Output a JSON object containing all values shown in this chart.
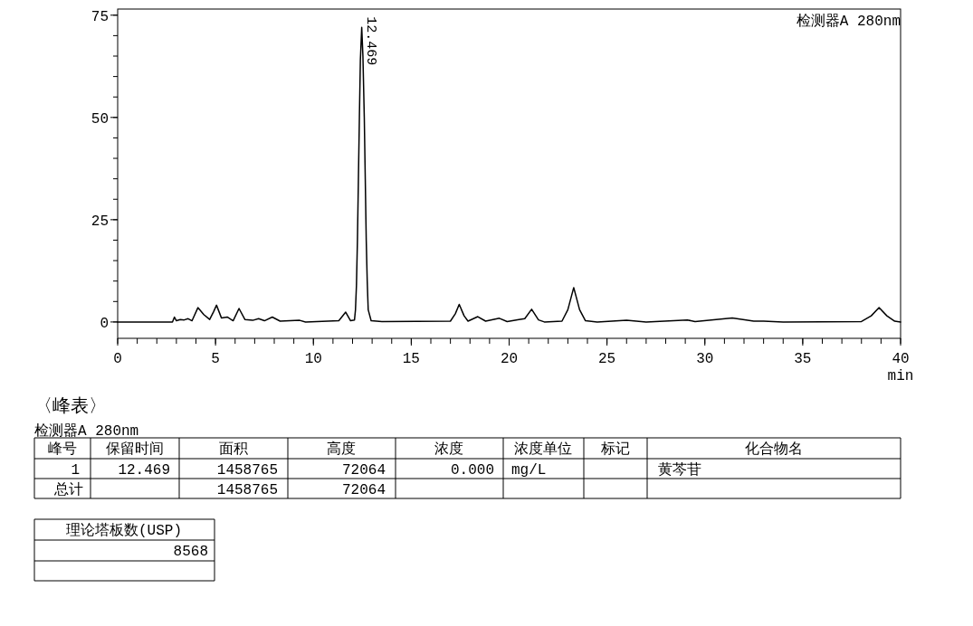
{
  "chart_data": {
    "type": "line",
    "xlabel": "min",
    "x": [
      0,
      2.8,
      2.9,
      3.0,
      3.2,
      3.4,
      3.6,
      3.8,
      4.1,
      4.4,
      4.7,
      4.9,
      5.05,
      5.3,
      5.6,
      5.9,
      6.2,
      6.5,
      6.9,
      7.2,
      7.5,
      7.9,
      8.3,
      9.3,
      9.6,
      11.3,
      11.65,
      11.9,
      12.1,
      12.15,
      12.2,
      12.25,
      12.3,
      12.35,
      12.4,
      12.469,
      12.53,
      12.6,
      12.65,
      12.7,
      12.75,
      12.8,
      12.95,
      13.5,
      17.0,
      17.25,
      17.45,
      17.7,
      17.9,
      18.4,
      18.8,
      19.5,
      19.9,
      20.5,
      20.8,
      21.15,
      21.5,
      21.8,
      22.7,
      23.0,
      23.3,
      23.6,
      23.9,
      24.5,
      26,
      27,
      29.1,
      29.5,
      31.4,
      32.5,
      33,
      34,
      38.0,
      38.5,
      38.9,
      39.3,
      39.7,
      40
    ],
    "series": [
      {
        "color": "#000000",
        "values": [
          0,
          0,
          1.2,
          0.3,
          0.6,
          0.5,
          0.8,
          0.3,
          3.5,
          1.8,
          0.6,
          2.5,
          4.1,
          1.0,
          1.2,
          0.3,
          3.3,
          0.6,
          0.4,
          0.8,
          0.3,
          1.2,
          0.2,
          0.4,
          0,
          0.3,
          2.4,
          0.3,
          0.5,
          3,
          9,
          20,
          35,
          50,
          64,
          72,
          65,
          50,
          35,
          20,
          10,
          3,
          0.3,
          0.1,
          0.2,
          2,
          4.3,
          1.5,
          0.2,
          1.3,
          0.2,
          0.9,
          0.1,
          0.6,
          0.8,
          3.1,
          0.5,
          0,
          0.2,
          3,
          8.4,
          3,
          0.3,
          0,
          0.4,
          0,
          0.5,
          0.1,
          1.0,
          0.2,
          0.2,
          0,
          0.1,
          1.5,
          3.5,
          1.5,
          0.2,
          0
        ]
      }
    ],
    "xlim": [
      0,
      40
    ],
    "xticks": [
      0,
      5,
      10,
      15,
      20,
      25,
      30,
      35,
      40
    ],
    "ylim": [
      -4,
      76.5
    ],
    "yticks": [
      0,
      25,
      50,
      75
    ],
    "grid": false,
    "marker": "none",
    "line_style": "solid",
    "annotations": [
      {
        "text": "12.469",
        "x": 12.469,
        "y": 72
      },
      "检测器A 280nm",
      "〈峰表〉",
      "检测器A 280nm",
      "峰号",
      "保留时间",
      "面积",
      "高度",
      "浓度",
      "浓度单位",
      "标记",
      "化合物名",
      "1",
      "12.469",
      "1458765",
      "72064",
      "0.000",
      "mg/L",
      "黄芩苷",
      "总计",
      "1458765",
      "72064",
      "理论塔板数(USP)",
      "8568"
    ]
  }
}
